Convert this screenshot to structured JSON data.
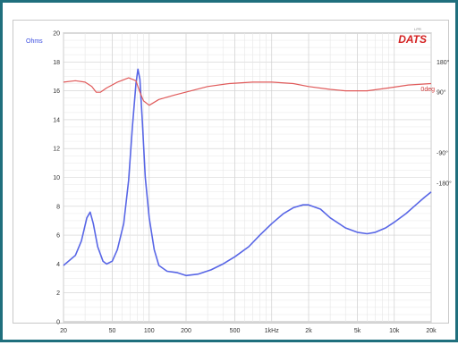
{
  "chart_data": {
    "type": "line",
    "brand": "DATS",
    "brand_mark": "LPR",
    "left_axis_label": "Ohms",
    "right_axis_label": "0deg",
    "x_scale": "log",
    "xlim": [
      20,
      20000
    ],
    "ylim": [
      0,
      20
    ],
    "x_ticks": [
      {
        "value": 20,
        "label": "20"
      },
      {
        "value": 50,
        "label": "50"
      },
      {
        "value": 100,
        "label": "100"
      },
      {
        "value": 200,
        "label": "200"
      },
      {
        "value": 500,
        "label": "500"
      },
      {
        "value": 1000,
        "label": "1kHz"
      },
      {
        "value": 2000,
        "label": "2k"
      },
      {
        "value": 5000,
        "label": "5k"
      },
      {
        "value": 10000,
        "label": "10k"
      },
      {
        "value": 20000,
        "label": "20k"
      }
    ],
    "y_ticks": [
      "0",
      "2",
      "4",
      "6",
      "8",
      "10",
      "12",
      "14",
      "16",
      "18",
      "20"
    ],
    "phase_ylim": [
      -180,
      180
    ],
    "phase_ticks": [
      {
        "value": 180,
        "label": "180°"
      },
      {
        "value": 90,
        "label": "90°"
      },
      {
        "value": -90,
        "label": "-90°"
      },
      {
        "value": -180,
        "label": "-180°"
      }
    ],
    "grid": true,
    "series": [
      {
        "axis": "left",
        "color": "#5866e6",
        "points": [
          [
            20,
            3.9
          ],
          [
            25,
            4.6
          ],
          [
            28,
            5.6
          ],
          [
            31,
            7.2
          ],
          [
            33,
            7.6
          ],
          [
            35,
            6.8
          ],
          [
            38,
            5.2
          ],
          [
            42,
            4.2
          ],
          [
            45,
            4.0
          ],
          [
            50,
            4.2
          ],
          [
            55,
            5.0
          ],
          [
            62,
            6.8
          ],
          [
            68,
            9.8
          ],
          [
            73,
            13.5
          ],
          [
            78,
            16.5
          ],
          [
            81,
            17.5
          ],
          [
            84,
            16.8
          ],
          [
            88,
            13.8
          ],
          [
            93,
            10.0
          ],
          [
            100,
            7.2
          ],
          [
            110,
            5.0
          ],
          [
            120,
            3.9
          ],
          [
            140,
            3.5
          ],
          [
            170,
            3.4
          ],
          [
            200,
            3.2
          ],
          [
            250,
            3.3
          ],
          [
            320,
            3.6
          ],
          [
            400,
            4.0
          ],
          [
            500,
            4.5
          ],
          [
            650,
            5.2
          ],
          [
            800,
            6.0
          ],
          [
            1000,
            6.8
          ],
          [
            1250,
            7.5
          ],
          [
            1500,
            7.9
          ],
          [
            1800,
            8.1
          ],
          [
            2000,
            8.1
          ],
          [
            2500,
            7.8
          ],
          [
            3000,
            7.2
          ],
          [
            4000,
            6.5
          ],
          [
            5000,
            6.2
          ],
          [
            6000,
            6.1
          ],
          [
            7000,
            6.2
          ],
          [
            8500,
            6.5
          ],
          [
            10000,
            6.9
          ],
          [
            12500,
            7.5
          ],
          [
            15000,
            8.1
          ],
          [
            17500,
            8.6
          ],
          [
            20000,
            9.0
          ]
        ]
      },
      {
        "axis": "right",
        "color": "#e05a5a",
        "points": [
          [
            20,
            16.6
          ],
          [
            25,
            16.7
          ],
          [
            30,
            16.6
          ],
          [
            34,
            16.3
          ],
          [
            37,
            15.9
          ],
          [
            40,
            15.9
          ],
          [
            45,
            16.2
          ],
          [
            55,
            16.6
          ],
          [
            68,
            16.9
          ],
          [
            78,
            16.7
          ],
          [
            84,
            15.9
          ],
          [
            90,
            15.3
          ],
          [
            100,
            15.0
          ],
          [
            120,
            15.4
          ],
          [
            160,
            15.7
          ],
          [
            220,
            16.0
          ],
          [
            300,
            16.3
          ],
          [
            450,
            16.5
          ],
          [
            700,
            16.6
          ],
          [
            1000,
            16.6
          ],
          [
            1500,
            16.5
          ],
          [
            2000,
            16.3
          ],
          [
            3000,
            16.1
          ],
          [
            4000,
            16.0
          ],
          [
            6000,
            16.0
          ],
          [
            9000,
            16.2
          ],
          [
            13000,
            16.4
          ],
          [
            20000,
            16.5
          ]
        ]
      }
    ]
  }
}
